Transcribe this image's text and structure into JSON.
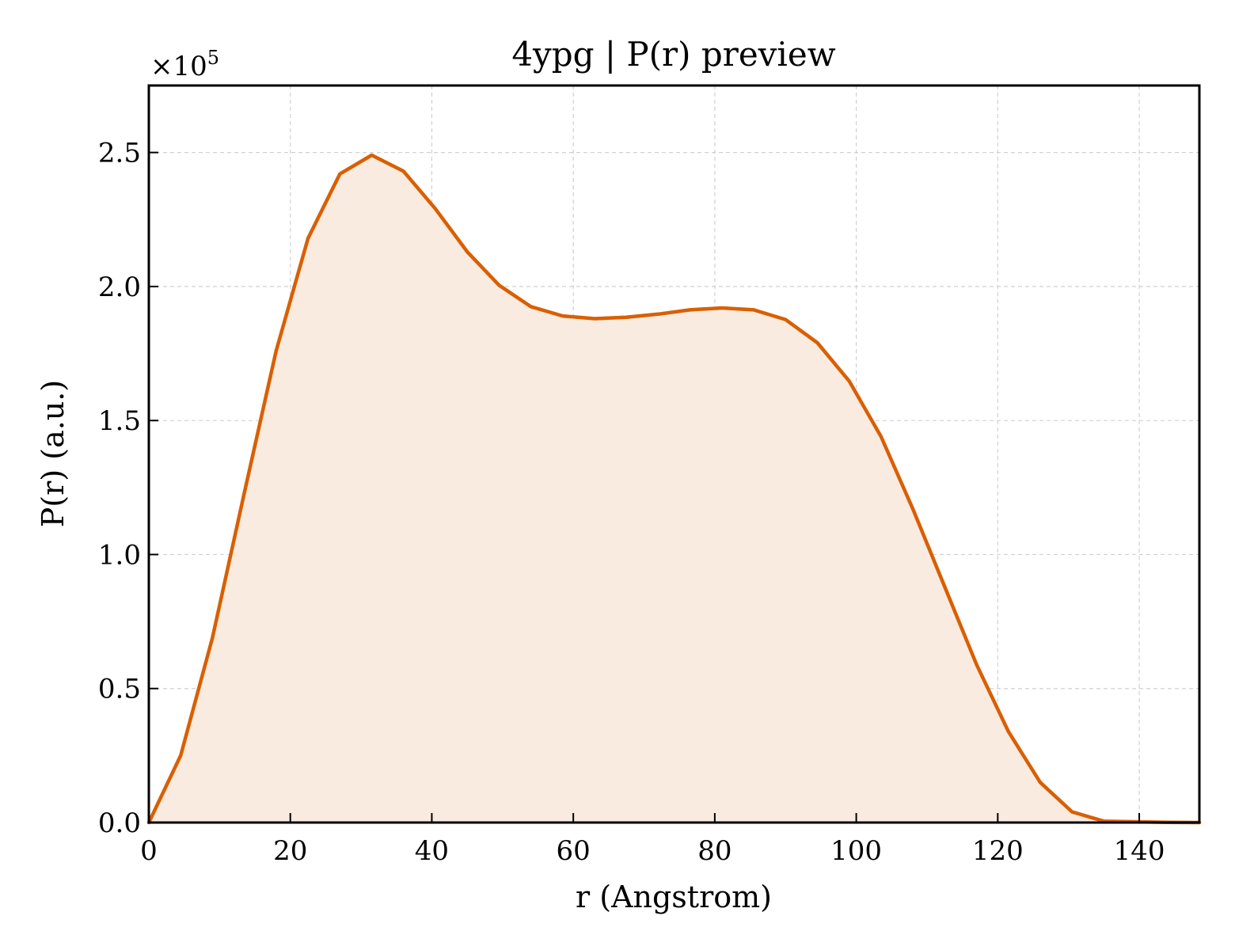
{
  "chart_data": {
    "type": "area",
    "title": "4ypg | P(r) preview",
    "xlabel": "r (Angstrom)",
    "ylabel": "P(r) (a.u.)",
    "y_multiplier": "×10",
    "y_multiplier_exp": "5",
    "xlim": [
      0,
      148.5
    ],
    "ylim": [
      0,
      2.75
    ],
    "xticks": [
      0,
      20,
      40,
      60,
      80,
      100,
      120,
      140
    ],
    "xtick_labels": [
      "0",
      "20",
      "40",
      "60",
      "80",
      "100",
      "120",
      "140"
    ],
    "yticks": [
      0,
      0.5,
      1.0,
      1.5,
      2.0,
      2.5
    ],
    "ytick_labels": [
      "0.0",
      "0.5",
      "1.0",
      "1.5",
      "2.0",
      "2.5"
    ],
    "grid": true,
    "line_color": "#D95F02",
    "fill_color": "#F9EBE0",
    "series": [
      {
        "x": [
          0,
          4.5,
          9.0,
          13.5,
          18.0,
          22.5,
          27.0,
          31.5,
          36.0,
          40.5,
          45.0,
          49.5,
          54.0,
          58.5,
          63.0,
          67.5,
          72.0,
          76.5,
          81.0,
          85.5,
          90.0,
          94.5,
          99.0,
          103.5,
          108.0,
          112.5,
          117.0,
          121.5,
          126.0,
          130.5,
          135.0,
          139.5,
          144.0,
          148.5
        ],
        "y": [
          0.0,
          0.25,
          0.69,
          1.23,
          1.76,
          2.18,
          2.42,
          2.49,
          2.43,
          2.29,
          2.13,
          2.005,
          1.925,
          1.89,
          1.88,
          1.885,
          1.897,
          1.913,
          1.92,
          1.913,
          1.877,
          1.79,
          1.647,
          1.44,
          1.17,
          0.88,
          0.59,
          0.34,
          0.15,
          0.04,
          0.005,
          0.003,
          0.001,
          0.0
        ]
      }
    ]
  }
}
